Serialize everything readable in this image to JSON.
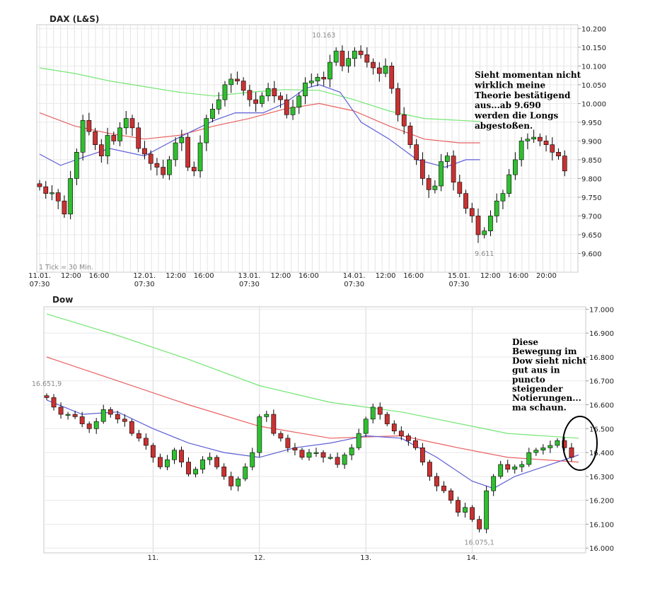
{
  "charts": [
    {
      "title": "DAX (L&S)",
      "type": "candlestick",
      "ylim": [
        9550,
        10210
      ],
      "ticks": [
        "10.200",
        "10.150",
        "10.100",
        "10.050",
        "10.000",
        "9.950",
        "9.900",
        "9.850",
        "9.800",
        "9.750",
        "9.700",
        "9.650",
        "9.600"
      ],
      "tickValues": [
        10200,
        10150,
        10100,
        10050,
        10000,
        9950,
        9900,
        9850,
        9800,
        9750,
        9700,
        9650,
        9600
      ],
      "xlabels": [
        {
          "t": "11.01.",
          "s": "07:30",
          "x": 0
        },
        {
          "t": "12:00",
          "x": 4.5
        },
        {
          "t": "16:00",
          "x": 8.5
        },
        {
          "t": "12.01.",
          "s": "07:30",
          "x": 15
        },
        {
          "t": "12:00",
          "x": 19.5
        },
        {
          "t": "16:00",
          "x": 23.5
        },
        {
          "t": "13.01.",
          "s": "07:30",
          "x": 30
        },
        {
          "t": "12:00",
          "x": 34.5
        },
        {
          "t": "16:00",
          "x": 38.5
        },
        {
          "t": "14.01.",
          "s": "07:30",
          "x": 45
        },
        {
          "t": "12:00",
          "x": 49.5
        },
        {
          "t": "16:00",
          "x": 53.5
        },
        {
          "t": "15.01.",
          "s": "07:30",
          "x": 60
        },
        {
          "t": "12:00",
          "x": 64.5
        },
        {
          "t": "16:00",
          "x": 68.5
        },
        {
          "t": "20:00",
          "x": 72.5
        }
      ],
      "xmax": 76,
      "interval": "1 Tick = 30 Min.",
      "high_label": "10.163",
      "low_label": "9.611",
      "annotation": [
        "Sieht momentan nicht",
        "wirklich meine",
        "Theorie bestätigend",
        "aus...ab 9.690",
        "werden die Longs",
        "abgestoßen."
      ],
      "closes": [
        9778,
        9760,
        9762,
        9740,
        9705,
        9800,
        9870,
        9955,
        9925,
        9890,
        9860,
        9915,
        9900,
        9935,
        9960,
        9935,
        9880,
        9865,
        9840,
        9830,
        9810,
        9850,
        9895,
        9910,
        9830,
        9820,
        9895,
        9960,
        9985,
        10010,
        10050,
        10065,
        10060,
        10035,
        10010,
        10000,
        10020,
        10040,
        10020,
        10010,
        9970,
        9990,
        10020,
        10055,
        10060,
        10070,
        10065,
        10110,
        10140,
        10100,
        10120,
        10140,
        10130,
        10110,
        10095,
        10080,
        10100,
        10040,
        9970,
        9940,
        9890,
        9850,
        9800,
        9770,
        9780,
        9845,
        9860,
        9790,
        9760,
        9720,
        9700,
        9650,
        9660,
        9700,
        9740,
        9760,
        9810,
        9850,
        9900,
        9905,
        9910,
        9900,
        9890,
        9870,
        9860,
        9820
      ],
      "ma_green": [
        [
          0,
          10095
        ],
        [
          5,
          10080
        ],
        [
          10,
          10060
        ],
        [
          15,
          10045
        ],
        [
          20,
          10030
        ],
        [
          25,
          10020
        ],
        [
          30,
          10030
        ],
        [
          35,
          10037
        ],
        [
          40,
          10035
        ],
        [
          45,
          10010
        ],
        [
          50,
          9980
        ],
        [
          55,
          9960
        ],
        [
          60,
          9955
        ],
        [
          63,
          9952
        ]
      ],
      "ma_red": [
        [
          0,
          9975
        ],
        [
          5,
          9940
        ],
        [
          10,
          9920
        ],
        [
          15,
          9905
        ],
        [
          20,
          9915
        ],
        [
          25,
          9940
        ],
        [
          30,
          9960
        ],
        [
          35,
          9985
        ],
        [
          40,
          10000
        ],
        [
          45,
          9980
        ],
        [
          50,
          9940
        ],
        [
          55,
          9905
        ],
        [
          60,
          9895
        ],
        [
          63,
          9895
        ]
      ],
      "ma_blue": [
        [
          0,
          9865
        ],
        [
          3,
          9835
        ],
        [
          6,
          9855
        ],
        [
          10,
          9880
        ],
        [
          15,
          9860
        ],
        [
          20,
          9910
        ],
        [
          25,
          9955
        ],
        [
          28,
          9975
        ],
        [
          32,
          9975
        ],
        [
          35,
          10000
        ],
        [
          38,
          10040
        ],
        [
          40,
          10050
        ],
        [
          43,
          10030
        ],
        [
          46,
          9950
        ],
        [
          50,
          9905
        ],
        [
          54,
          9850
        ],
        [
          58,
          9830
        ],
        [
          61,
          9850
        ],
        [
          63,
          9850
        ]
      ]
    },
    {
      "title": "Dow",
      "type": "candlestick",
      "ylim": [
        15980,
        17010
      ],
      "ticks": [
        "17.000",
        "16.900",
        "16.800",
        "16.700",
        "16.600",
        "16.500",
        "16.400",
        "16.300",
        "16.200",
        "16.100",
        "16.000"
      ],
      "tickValues": [
        17000,
        16900,
        16800,
        16700,
        16600,
        16500,
        16400,
        16300,
        16200,
        16100,
        16000
      ],
      "xlabels": [
        {
          "t": "11.",
          "x": 15
        },
        {
          "t": "12.",
          "x": 30
        },
        {
          "t": "13.",
          "x": 45
        },
        {
          "t": "14.",
          "x": 60
        }
      ],
      "xmax": 75,
      "high_label": "16.651,9",
      "low_label": "16.075,1",
      "annotation": [
        "Diese",
        "Bewegung im",
        "Dow sieht nicht",
        "gut aus in",
        "puncto",
        "steigender",
        "Notierungen...",
        "ma schaun."
      ],
      "closes": [
        16630,
        16590,
        16560,
        16560,
        16550,
        16520,
        16500,
        16530,
        16580,
        16560,
        16540,
        16530,
        16480,
        16460,
        16430,
        16380,
        16340,
        16370,
        16410,
        16360,
        16310,
        16330,
        16370,
        16380,
        16340,
        16300,
        16260,
        16290,
        16340,
        16400,
        16550,
        16560,
        16480,
        16460,
        16420,
        16410,
        16380,
        16400,
        16400,
        16380,
        16380,
        16350,
        16390,
        16420,
        16480,
        16540,
        16590,
        16560,
        16520,
        16490,
        16470,
        16450,
        16420,
        16360,
        16300,
        16260,
        16240,
        16200,
        16150,
        16170,
        16120,
        16080,
        16240,
        16300,
        16350,
        16330,
        16340,
        16350,
        16400,
        16410,
        16420,
        16430,
        16450,
        16420,
        16380
      ]
    }
  ]
}
